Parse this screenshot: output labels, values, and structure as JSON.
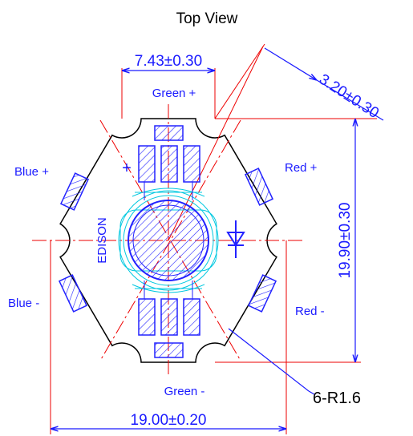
{
  "title": "Top View",
  "dimensions": {
    "pad_pitch": "7.43±0.30",
    "notch_offset": "3.20±0.30",
    "height": "19.90±0.30",
    "width": "19.00±0.20"
  },
  "pads": {
    "green_plus": "Green +",
    "blue_plus": "Blue +",
    "red_plus": "Red +",
    "blue_minus": "Blue -",
    "red_minus": "Red -",
    "green_minus": "Green -"
  },
  "brand": "EDISON",
  "polarity": "+",
  "callout": "6-R1.6"
}
